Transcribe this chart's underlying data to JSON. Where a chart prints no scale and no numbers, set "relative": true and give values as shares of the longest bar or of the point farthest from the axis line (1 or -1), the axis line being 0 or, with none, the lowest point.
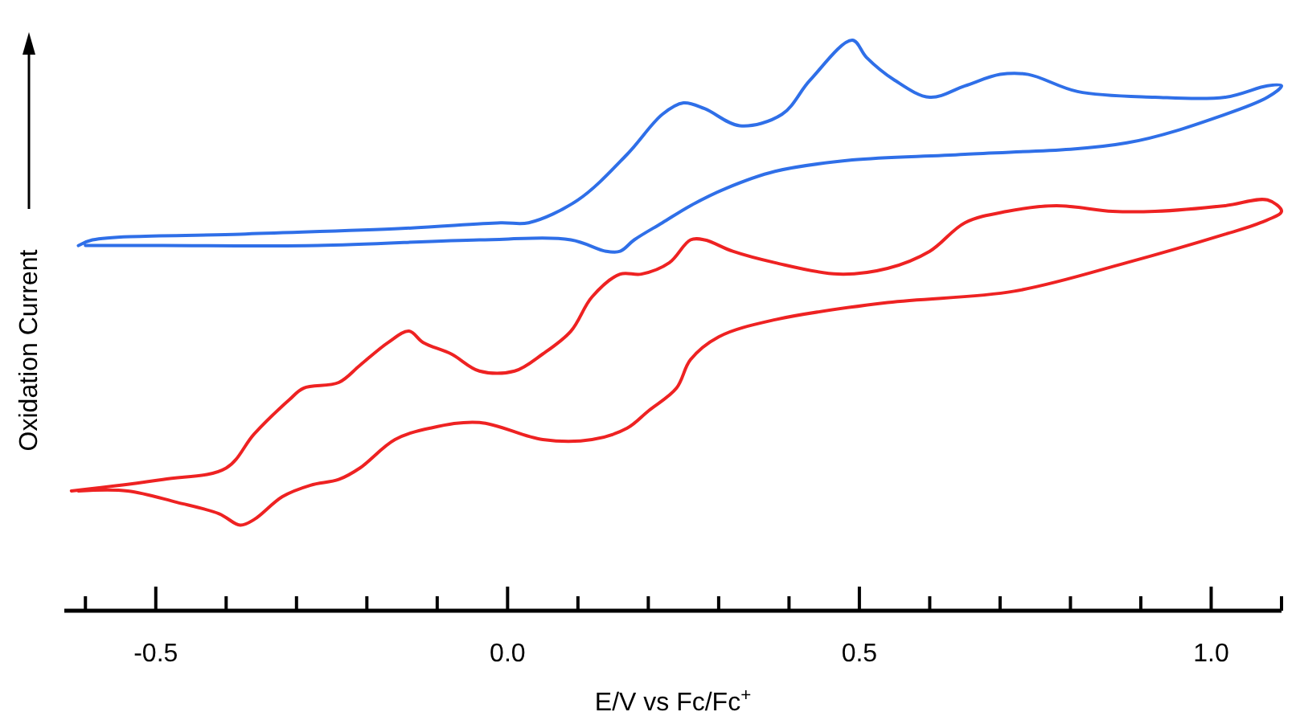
{
  "chart_data": {
    "type": "line",
    "relative": true,
    "xlabel": "E/V vs Fc/Fc$^{+}$",
    "ylabel": "Oxidation Current",
    "xlim": [
      -0.63,
      1.1
    ],
    "xticks": [
      {
        "value": -0.6,
        "label": null
      },
      {
        "value": -0.5,
        "label": "-0.5"
      },
      {
        "value": -0.4,
        "label": null
      },
      {
        "value": -0.3,
        "label": null
      },
      {
        "value": -0.2,
        "label": null
      },
      {
        "value": -0.1,
        "label": null
      },
      {
        "value": 0,
        "label": "0.0"
      },
      {
        "value": 0.1,
        "label": null
      },
      {
        "value": 0.2,
        "label": null
      },
      {
        "value": 0.3,
        "label": null
      },
      {
        "value": 0.4,
        "label": null
      },
      {
        "value": 0.5,
        "label": "0.5"
      },
      {
        "value": 0.6,
        "label": null
      },
      {
        "value": 0.7,
        "label": null
      },
      {
        "value": 0.8,
        "label": null
      },
      {
        "value": 0.9,
        "label": null
      },
      {
        "value": 1.0,
        "label": "1.0"
      },
      {
        "value": 1.1,
        "label": null
      }
    ],
    "grid": false,
    "line_style": "solid",
    "series": [
      {
        "color": "#2f6fe8",
        "x": [
          -0.61,
          -0.59,
          -0.38,
          -0.15,
          -0.01,
          0.03,
          0.1,
          0.17,
          0.22,
          0.25,
          0.28,
          0.33,
          0.39,
          0.43,
          0.49,
          0.51,
          0.55,
          0.6,
          0.65,
          0.7,
          0.74,
          0.81,
          0.92,
          1.02,
          1.08,
          1.1,
          1.08,
          1.02,
          0.88,
          0.65,
          0.49,
          0.38,
          0.31,
          0.26,
          0.22,
          0.18,
          0.16,
          0.14,
          0.09,
          -0.04,
          -0.27,
          -0.49,
          -0.6
        ],
        "values": [
          0.64,
          0.65,
          0.66,
          0.67,
          0.68,
          0.68,
          0.72,
          0.8,
          0.87,
          0.89,
          0.88,
          0.85,
          0.87,
          0.93,
          1.0,
          0.97,
          0.93,
          0.9,
          0.92,
          0.94,
          0.94,
          0.91,
          0.9,
          0.9,
          0.92,
          0.92,
          0.9,
          0.87,
          0.82,
          0.8,
          0.79,
          0.77,
          0.74,
          0.71,
          0.68,
          0.65,
          0.63,
          0.63,
          0.65,
          0.65,
          0.64,
          0.64,
          0.64
        ]
      },
      {
        "color": "#ee2222",
        "x": [
          -0.62,
          -0.49,
          -0.4,
          -0.36,
          -0.31,
          -0.29,
          -0.24,
          -0.21,
          -0.17,
          -0.14,
          -0.12,
          -0.08,
          -0.04,
          0.01,
          0.05,
          0.09,
          0.12,
          0.16,
          0.19,
          0.23,
          0.26,
          0.28,
          0.32,
          0.38,
          0.47,
          0.54,
          0.6,
          0.65,
          0.71,
          0.78,
          0.86,
          0.92,
          1.02,
          1.08,
          1.1,
          1.07,
          1.02,
          0.88,
          0.72,
          0.54,
          0.38,
          0.3,
          0.26,
          0.24,
          0.2,
          0.17,
          0.12,
          0.05,
          -0.04,
          -0.11,
          -0.16,
          -0.21,
          -0.24,
          -0.28,
          -0.32,
          -0.36,
          -0.38,
          -0.41,
          -0.47,
          -0.54,
          -0.61
        ],
        "values": [
          0.21,
          0.23,
          0.25,
          0.31,
          0.37,
          0.39,
          0.4,
          0.43,
          0.47,
          0.49,
          0.47,
          0.45,
          0.42,
          0.42,
          0.45,
          0.49,
          0.55,
          0.59,
          0.59,
          0.61,
          0.65,
          0.65,
          0.63,
          0.61,
          0.59,
          0.6,
          0.63,
          0.68,
          0.7,
          0.71,
          0.7,
          0.7,
          0.71,
          0.72,
          0.7,
          0.68,
          0.66,
          0.61,
          0.56,
          0.54,
          0.51,
          0.48,
          0.44,
          0.39,
          0.35,
          0.32,
          0.3,
          0.3,
          0.33,
          0.32,
          0.3,
          0.25,
          0.23,
          0.22,
          0.2,
          0.16,
          0.15,
          0.17,
          0.19,
          0.21,
          0.21
        ]
      }
    ]
  }
}
